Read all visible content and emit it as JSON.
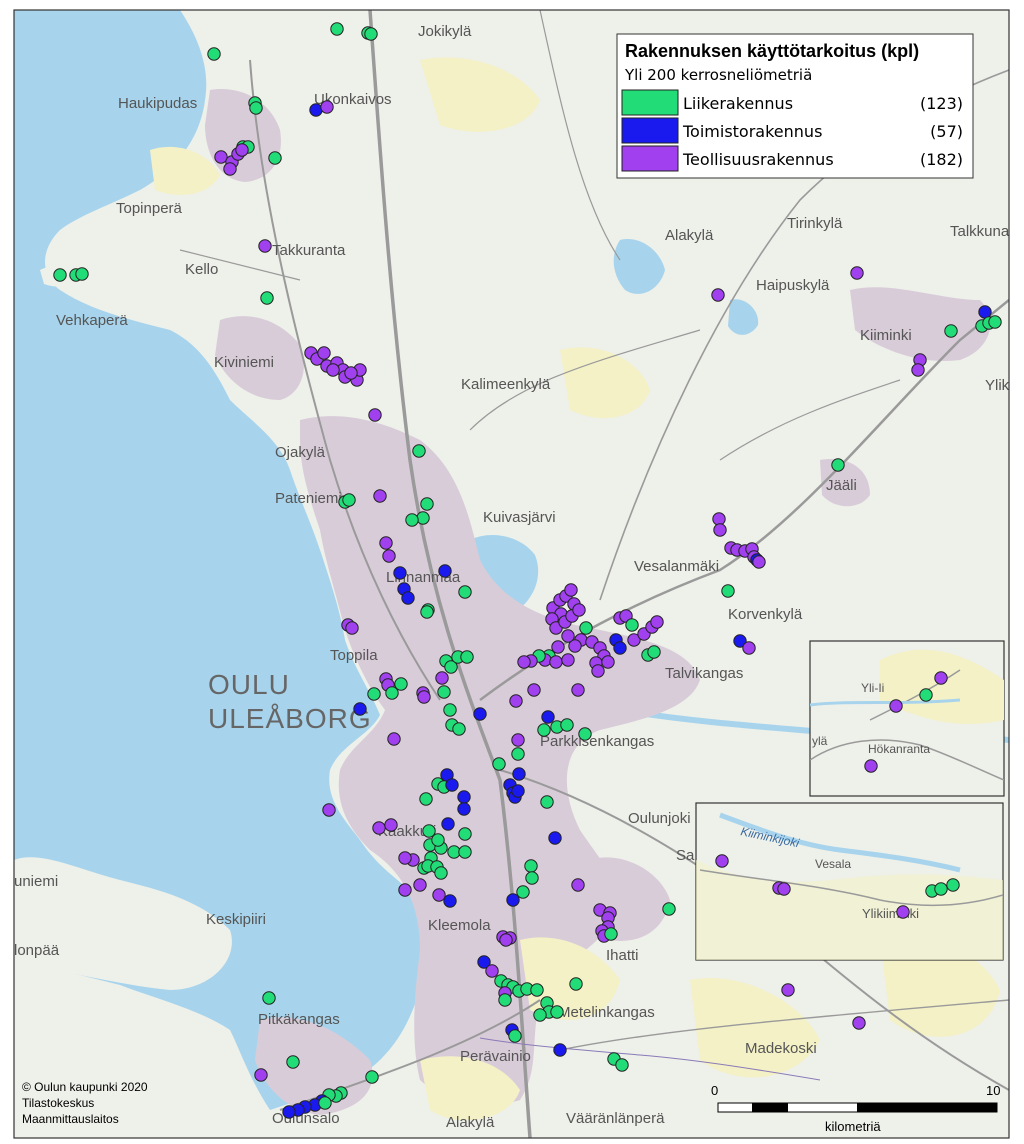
{
  "legend": {
    "title": "Rakennuksen käyttötarkoitus (kpl)",
    "subtitle": "Yli 200 kerrosneliömetriä",
    "items": [
      {
        "label": "Liikerakennus",
        "count": "(123)",
        "color": "#22dd77"
      },
      {
        "label": "Toimistorakennus",
        "count": "(57)",
        "color": "#1a1aee"
      },
      {
        "label": "Teollisuusrakennus",
        "count": "(182)",
        "color": "#a040ee"
      }
    ]
  },
  "places": {
    "oulu": "OULU",
    "uleaborg": "ULEÅBORG",
    "jokikyla": "Jokikylä",
    "haukipudas": "Haukipudas",
    "ukonkaivos": "Ukonkaivos",
    "topinpera": "Topinperä",
    "takkuranta": "Takkuranta",
    "kello": "Kello",
    "vehkapera": "Vehkaperä",
    "kiviniemi": "Kiviniemi",
    "alakyla_n": "Alakylä",
    "tirinkyla": "Tirinkylä",
    "talkkuna": "Talkkuna",
    "haipuskyla": "Haipuskylä",
    "kiiminki": "Kiiminki",
    "ylik": "Ylik",
    "kalimeenkyla": "Kalimeenkylä",
    "ojakyla": "Ojakylä",
    "pateniemi": "Pateniemi",
    "kuivasjarvi": "Kuivasjärvi",
    "jaali": "Jääli",
    "vesalanmaki": "Vesalanmäki",
    "korvenkyla": "Korvenkylä",
    "linnanmaa": "Linnanmaa",
    "toppila": "Toppila",
    "talvikangas": "Talvikangas",
    "parkkisenkangas": "Parkkisenkangas",
    "oulunjoki": "Oulunjoki",
    "sa": "Sa",
    "uniemi": "uniemi",
    "keskipiiri": "Keskipiiri",
    "lonpaa": "lonpää",
    "kaakkuri": "Kaakkuri",
    "kleemola": "Kleemola",
    "ihatti": "Ihatti",
    "pitkakangas": "Pitkäkangas",
    "metelinkangas": "Metelinkangas",
    "peravainio": "Perävainio",
    "madekoski": "Madekoski",
    "oulunsalo": "Oulunsalo",
    "alakyla_s": "Alakylä",
    "vaaralanpera": "Vääränlänperä",
    "yli_ii": "Yli-Ii",
    "hokanranta": "Hökanranta",
    "yla": "ylä",
    "kiiminkijoki": "Kiiminkijoki",
    "vesala": "Vesala",
    "ylikiiminki": "Ylikiiminki"
  },
  "credits": [
    "© Oulun kaupunki 2020",
    "Tilastokeskus",
    "Maanmittauslaitos"
  ],
  "scale": {
    "start": "0",
    "end": "10",
    "unit": "kilometriä"
  },
  "colors": {
    "sea": "#a7d4ec",
    "land": "#eef0ea",
    "urban": "#d9ccd9",
    "field": "#f4f1c6",
    "road": "#9a9a9a",
    "inset_border": "#333333"
  }
}
